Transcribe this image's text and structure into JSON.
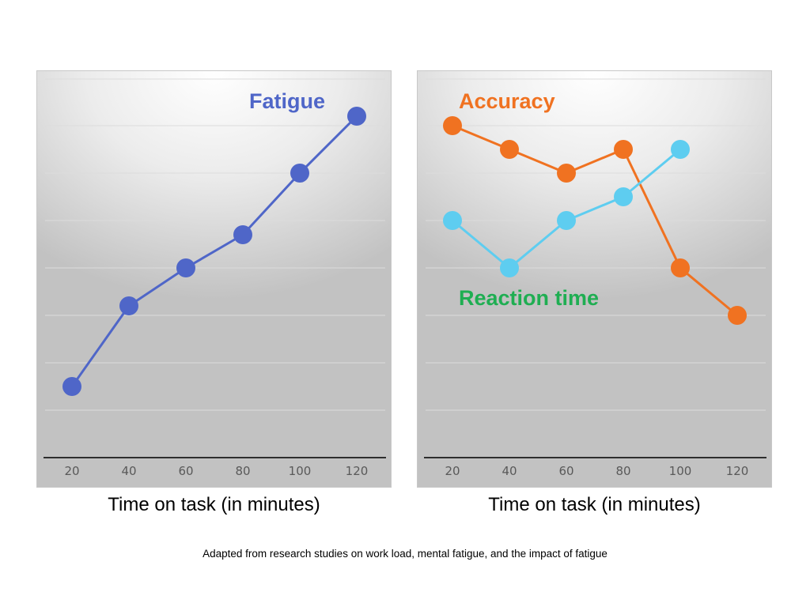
{
  "chart_data": [
    {
      "type": "line",
      "title": "",
      "xlabel": "Time on task (in minutes)",
      "ylabel": "",
      "categories": [
        "20",
        "40",
        "60",
        "80",
        "100",
        "120"
      ],
      "ylim": [
        0,
        8
      ],
      "grid": true,
      "series": [
        {
          "name": "Fatigue",
          "color": "#4f66c8",
          "values": [
            1.5,
            3.2,
            4.0,
            4.7,
            6.0,
            7.2
          ]
        }
      ]
    },
    {
      "type": "line",
      "title": "",
      "xlabel": "Time on task (in minutes)",
      "ylabel": "",
      "categories": [
        "20",
        "40",
        "60",
        "80",
        "100",
        "120"
      ],
      "ylim": [
        0,
        8
      ],
      "grid": true,
      "series": [
        {
          "name": "Accuracy",
          "color": "#f07221",
          "values": [
            7.0,
            6.5,
            6.0,
            6.5,
            4.0,
            3.0
          ]
        },
        {
          "name": "Reaction time",
          "color": "#5ecdf0",
          "label_color": "#1fae52",
          "values": [
            5.0,
            4.0,
            5.0,
            5.5,
            6.5,
            null
          ]
        }
      ]
    }
  ],
  "footer": {
    "source_note": "Adapted from research studies on work load, mental fatigue, and the impact of fatigue"
  }
}
